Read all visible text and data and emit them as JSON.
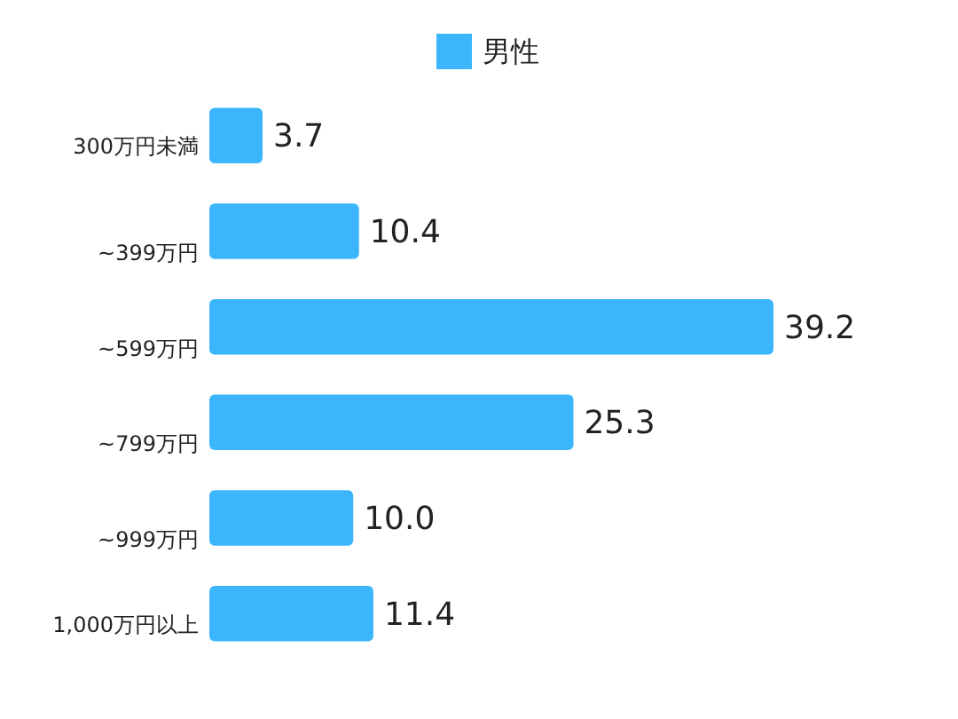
{
  "chart_data": {
    "type": "bar",
    "orientation": "horizontal",
    "categories": [
      "300万円未満",
      "~399万円",
      "~599万円",
      "~799万円",
      "~999万円",
      "1,000万円以上"
    ],
    "series": [
      {
        "name": "男性",
        "color": "#3bb6fc",
        "values": [
          3.7,
          10.4,
          39.2,
          25.3,
          10.0,
          11.4
        ],
        "value_labels": [
          "3.7",
          "10.4",
          "39.2",
          "25.3",
          "10.0",
          "11.4"
        ]
      }
    ],
    "legend": "top"
  }
}
